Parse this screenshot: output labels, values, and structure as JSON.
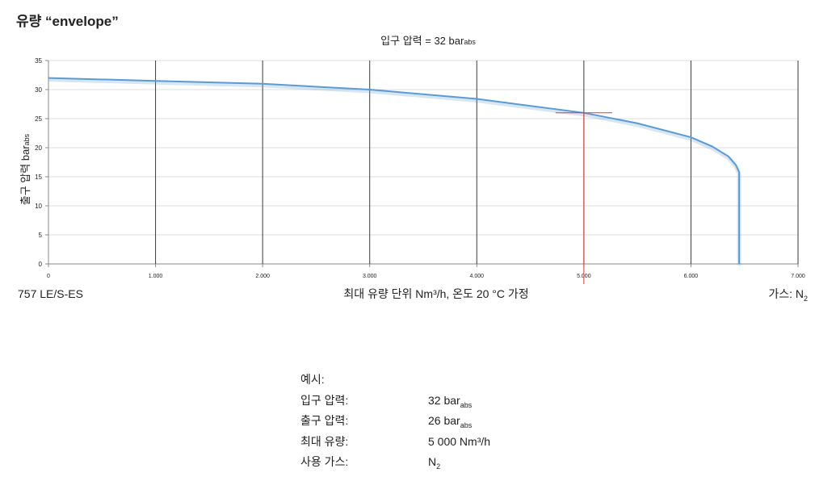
{
  "chart_data": {
    "type": "line",
    "heading": "유량 “envelope”",
    "subtitle": "입구 압력 = 32 bar",
    "subtitle_sub": "abs",
    "y_label": "출구 압력 bar",
    "y_label_sub": "abs",
    "x_label": "최대 유량 단위 Nm³/h, 온도 20 °C 가정",
    "model": "757 LE/S-ES",
    "gas": "가스: N",
    "gas_sub": "2",
    "series": [
      {
        "color": "#5b9bd5",
        "x": [
          0,
          1000,
          2000,
          3000,
          4000,
          5000,
          5500,
          6000,
          6200,
          6350,
          6420,
          6450,
          6450
        ],
        "values": [
          32,
          31.5,
          31,
          30,
          28.4,
          26,
          24.2,
          21.8,
          20.2,
          18.5,
          17,
          15.8,
          0
        ]
      }
    ],
    "marker": {
      "x": 5000,
      "y": 26,
      "color": "#e03a3a"
    },
    "xlim": [
      0,
      7000
    ],
    "xticks": [
      0,
      {
        "value": 1000,
        "label": "1.000"
      },
      {
        "value": 2000,
        "label": "2.000"
      },
      {
        "value": 3000,
        "label": "3.000"
      },
      {
        "value": 4000,
        "label": "4.000"
      },
      {
        "value": 5000,
        "label": "5.000"
      },
      {
        "value": 6000,
        "label": "6.000"
      },
      {
        "value": 7000,
        "label": "7.000"
      }
    ],
    "ylim": [
      0,
      35
    ],
    "yticks": [
      0,
      5,
      10,
      15,
      20,
      25,
      30,
      35
    ],
    "grid": true
  },
  "example": {
    "title": "예시:",
    "rows": [
      {
        "label": "입구 압력:",
        "value": "32 bar",
        "sub": "abs"
      },
      {
        "label": "출구 압력:",
        "value": "26 bar",
        "sub": "abs"
      },
      {
        "label": "최대 유량:",
        "value": "5 000 Nm³/h"
      },
      {
        "label": "사용 가스:",
        "value": "N",
        "sub": "2"
      }
    ]
  }
}
